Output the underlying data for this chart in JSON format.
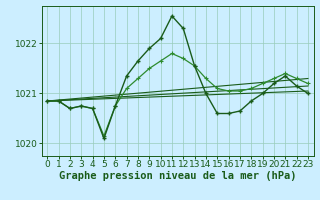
{
  "title": "Graphe pression niveau de la mer (hPa)",
  "xlabel": "Graphe pression niveau de la mer (hPa)",
  "background_color": "#cceeff",
  "grid_color": "#99ccbb",
  "line_color_dark": "#1a5c1a",
  "line_color_light": "#2e8b2e",
  "ylim": [
    1019.75,
    1022.75
  ],
  "xlim": [
    -0.5,
    23.5
  ],
  "yticks": [
    1020,
    1021,
    1022
  ],
  "xticks": [
    0,
    1,
    2,
    3,
    4,
    5,
    6,
    7,
    8,
    9,
    10,
    11,
    12,
    13,
    14,
    15,
    16,
    17,
    18,
    19,
    20,
    21,
    22,
    23
  ],
  "series1_x": [
    0,
    1,
    2,
    3,
    4,
    5,
    6,
    7,
    8,
    9,
    10,
    11,
    12,
    13,
    14,
    15,
    16,
    17,
    18,
    19,
    20,
    21,
    22,
    23
  ],
  "series1_y": [
    1020.85,
    1020.85,
    1020.7,
    1020.75,
    1020.7,
    1020.1,
    1020.75,
    1021.35,
    1021.65,
    1021.9,
    1022.1,
    1022.55,
    1022.3,
    1021.55,
    1021.0,
    1020.6,
    1020.6,
    1020.65,
    1020.85,
    1021.0,
    1021.2,
    1021.35,
    1021.15,
    1021.0
  ],
  "series2_x": [
    0,
    1,
    2,
    3,
    4,
    5,
    6,
    7,
    8,
    9,
    10,
    11,
    12,
    13,
    14,
    15,
    16,
    17,
    18,
    19,
    20,
    21,
    22,
    23
  ],
  "series2_y": [
    1020.85,
    1020.85,
    1020.7,
    1020.75,
    1020.7,
    1020.15,
    1020.75,
    1021.1,
    1021.3,
    1021.5,
    1021.65,
    1021.8,
    1021.7,
    1021.55,
    1021.3,
    1021.1,
    1021.05,
    1021.05,
    1021.1,
    1021.2,
    1021.3,
    1021.4,
    1021.3,
    1021.2
  ],
  "trend1_x": [
    0,
    23
  ],
  "trend1_y": [
    1020.85,
    1021.05
  ],
  "trend2_x": [
    0,
    23
  ],
  "trend2_y": [
    1020.85,
    1021.3
  ],
  "trend3_x": [
    0,
    23
  ],
  "trend3_y": [
    1020.85,
    1021.15
  ],
  "tick_fontsize": 6.5,
  "label_fontsize": 7.5
}
